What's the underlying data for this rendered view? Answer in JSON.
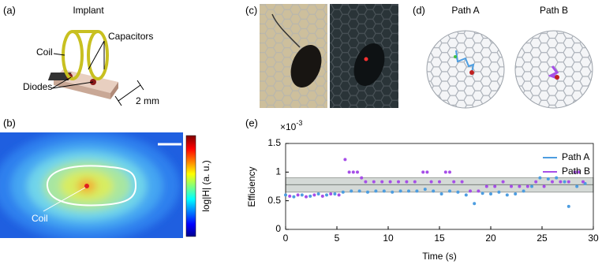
{
  "panels": {
    "a": {
      "label": "(a)",
      "title": "Implant",
      "coil": "Coil",
      "capacitors": "Capacitors",
      "diodes": "Diodes",
      "scale": "2 mm"
    },
    "b": {
      "label": "(b)",
      "colorbar_label": "log|H|  (a. u.)",
      "coil": "Coil"
    },
    "c": {
      "label": "(c)"
    },
    "d": {
      "label": "(d)",
      "path_a": "Path A",
      "path_b": "Path B"
    },
    "e": {
      "label": "(e)"
    }
  },
  "chart_data": {
    "type": "scatter",
    "xlabel": "Time (s)",
    "ylabel": "Efficiency",
    "y_multiplier": "×10",
    "y_multiplier_exp": "-3",
    "xlim": [
      0,
      30
    ],
    "ylim": [
      0,
      1.5
    ],
    "xticks": [
      0,
      5,
      10,
      15,
      20,
      25,
      30
    ],
    "yticks": [
      0,
      0.5,
      1,
      1.5
    ],
    "band": {
      "low": 0.65,
      "high": 0.9,
      "center": 0.78,
      "color": "#d4d9d6"
    },
    "legend": "upper right",
    "series": [
      {
        "name": "Path A",
        "color": "#4d9de0",
        "x": [
          0,
          0.8,
          1.6,
          2.4,
          3.2,
          4.0,
          4.8,
          5.6,
          6.4,
          7.2,
          8.0,
          8.8,
          9.6,
          10.4,
          11.2,
          12.0,
          12.8,
          13.6,
          14.4,
          15.2,
          16.0,
          16.8,
          17.6,
          18.4,
          19.2,
          20.0,
          20.8,
          21.6,
          22.4,
          23.2,
          24.0,
          24.8,
          25.6,
          26.4,
          27.2,
          27.6,
          28.4,
          29.2
        ],
        "values": [
          0.6,
          0.57,
          0.6,
          0.58,
          0.62,
          0.6,
          0.62,
          0.65,
          0.67,
          0.67,
          0.65,
          0.67,
          0.67,
          0.65,
          0.67,
          0.67,
          0.67,
          0.7,
          0.67,
          0.62,
          0.67,
          0.65,
          0.6,
          0.45,
          0.63,
          0.62,
          0.65,
          0.6,
          0.62,
          0.67,
          0.75,
          0.9,
          0.88,
          0.9,
          0.83,
          0.4,
          0.75,
          0.8
        ]
      },
      {
        "name": "Path B",
        "color": "#a64ee8",
        "x": [
          0.4,
          1.2,
          2.0,
          2.8,
          3.6,
          4.4,
          5.2,
          5.8,
          6.2,
          6.6,
          7.0,
          7.4,
          7.8,
          8.6,
          9.4,
          10.2,
          11.0,
          11.8,
          12.6,
          13.4,
          13.8,
          14.2,
          15.0,
          15.6,
          16.0,
          16.4,
          17.2,
          18.0,
          18.8,
          19.6,
          20.4,
          21.2,
          22.0,
          22.8,
          23.6,
          24.4,
          25.2,
          26.0,
          26.8,
          27.6,
          28.2,
          28.6,
          29.0
        ],
        "values": [
          0.58,
          0.6,
          0.57,
          0.6,
          0.58,
          0.62,
          0.6,
          1.22,
          1.0,
          1.0,
          1.0,
          0.9,
          0.83,
          0.83,
          0.83,
          0.83,
          0.83,
          0.83,
          0.83,
          1.0,
          1.0,
          0.83,
          0.83,
          1.0,
          1.0,
          0.83,
          0.83,
          0.67,
          0.67,
          0.75,
          0.75,
          0.83,
          0.75,
          0.75,
          0.75,
          0.83,
          0.75,
          0.83,
          0.83,
          0.83,
          1.0,
          1.0,
          0.83
        ]
      }
    ]
  }
}
